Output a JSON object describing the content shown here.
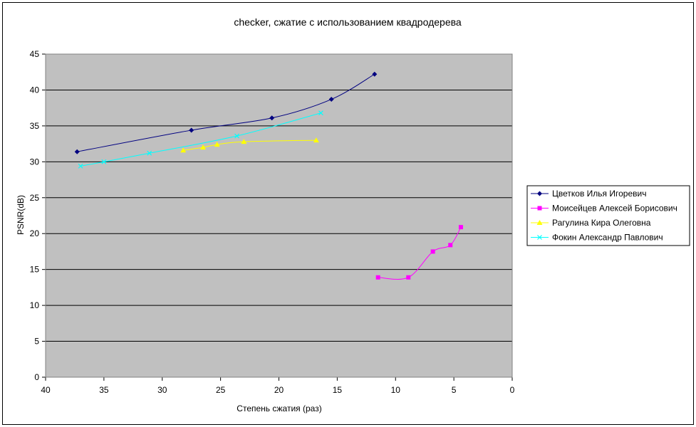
{
  "chart_data": {
    "type": "line",
    "title": "checker, сжатие с использованием квадродерева",
    "xlabel": "Степень сжатия (раз)",
    "ylabel": "PSNR(dB)",
    "xlim": [
      40,
      0
    ],
    "x_reversed": true,
    "ylim": [
      0,
      45
    ],
    "xticks": [
      40,
      35,
      30,
      25,
      20,
      15,
      10,
      5,
      0
    ],
    "yticks": [
      0,
      5,
      10,
      15,
      20,
      25,
      30,
      35,
      40,
      45
    ],
    "grid": "horizontal",
    "plot_background": "#c0c0c0",
    "legend_position": "right",
    "series": [
      {
        "name": "Цветков Илья Игоревич",
        "color": "#000080",
        "marker": "diamond",
        "x": [
          37.3,
          27.5,
          20.6,
          15.5,
          11.8
        ],
        "y": [
          31.4,
          34.4,
          36.1,
          38.7,
          42.2
        ]
      },
      {
        "name": "Моисейцев Алексей Борисович",
        "color": "#ff00ff",
        "marker": "square",
        "x": [
          11.5,
          8.9,
          6.8,
          5.3,
          4.4
        ],
        "y": [
          13.9,
          13.9,
          17.5,
          18.4,
          20.9
        ]
      },
      {
        "name": "Рагулина Кира Олеговна",
        "color": "#ffff00",
        "marker": "triangle",
        "x": [
          28.2,
          26.5,
          25.3,
          23.0,
          16.8
        ],
        "y": [
          31.6,
          32.0,
          32.4,
          32.8,
          33.0
        ]
      },
      {
        "name": "Фокин Александр Павлович",
        "color": "#00ffff",
        "marker": "x",
        "x": [
          37.0,
          35.0,
          31.1,
          23.6,
          16.4
        ],
        "y": [
          29.4,
          30.0,
          31.2,
          33.6,
          36.8
        ]
      }
    ]
  }
}
